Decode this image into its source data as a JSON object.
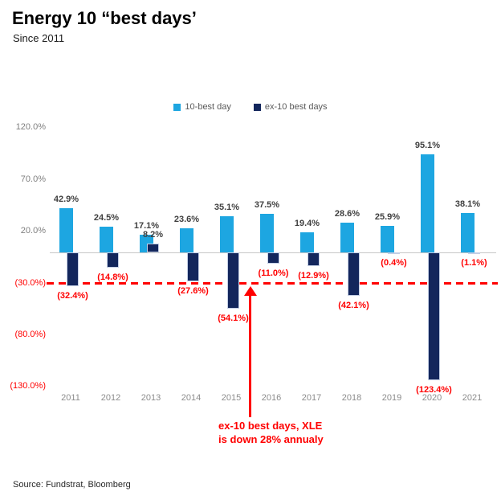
{
  "header": {
    "title": "Energy 10 “best days’",
    "subtitle": "Since 2011"
  },
  "legend": {
    "items": [
      {
        "label": "10-best day",
        "color": "#1da6e1"
      },
      {
        "label": "ex-10 best days",
        "color": "#13265c"
      }
    ]
  },
  "chart_data": {
    "type": "bar",
    "title": "Energy 10 best days since 2011",
    "categories": [
      "2011",
      "2012",
      "2013",
      "2014",
      "2015",
      "2016",
      "2017",
      "2018",
      "2019",
      "2020",
      "2021"
    ],
    "series": [
      {
        "name": "10-best day",
        "color": "#1da6e1",
        "values": [
          42.9,
          24.5,
          17.1,
          23.6,
          35.1,
          37.5,
          19.4,
          28.6,
          25.9,
          95.1,
          38.1
        ],
        "labels": [
          "42.9%",
          "24.5%",
          "17.1%",
          "23.6%",
          "35.1%",
          "37.5%",
          "19.4%",
          "28.6%",
          "25.9%",
          "95.1%",
          "38.1%"
        ]
      },
      {
        "name": "ex-10 best days",
        "color": "#13265c",
        "values": [
          -32.4,
          -14.8,
          8.2,
          -27.6,
          -54.1,
          -11.0,
          -12.9,
          -42.1,
          -0.4,
          -123.4,
          -1.1
        ],
        "labels": [
          "(32.4%)",
          "(14.8%)",
          "8.2%",
          "(27.6%)",
          "(54.1%)",
          "(11.0%)",
          "(12.9%)",
          "(42.1%)",
          "(0.4%)",
          "(123.4%)",
          "(1.1%)"
        ]
      }
    ],
    "ylim": [
      -130,
      120
    ],
    "y_ticks": [
      {
        "value": 120,
        "label": "120.0%"
      },
      {
        "value": 70,
        "label": "70.0%"
      },
      {
        "value": 20,
        "label": "20.0%"
      },
      {
        "value": -30,
        "label": "(30.0%)"
      },
      {
        "value": -80,
        "label": "(80.0%)"
      },
      {
        "value": -130,
        "label": "(130.0%)"
      }
    ],
    "reference_line": {
      "value": -30,
      "color": "#ff0000",
      "style": "dashed"
    },
    "grid": false,
    "legend_position": "top-center"
  },
  "annotation": {
    "line1": "ex-10 best days, XLE",
    "line2": "is down 28% annualy",
    "color": "#ff0000"
  },
  "footer": {
    "source": "Source: Fundstrat, Bloomberg"
  },
  "colors": {
    "bar_light_blue": "#1da6e1",
    "bar_dark_navy": "#13265c",
    "bar_dark_border": "#c3cee4",
    "negative_red": "#ff0000",
    "axis_grey": "#7f7f7f",
    "zero_line_grey": "#c6c6c6",
    "value_label_dark": "#404040"
  }
}
